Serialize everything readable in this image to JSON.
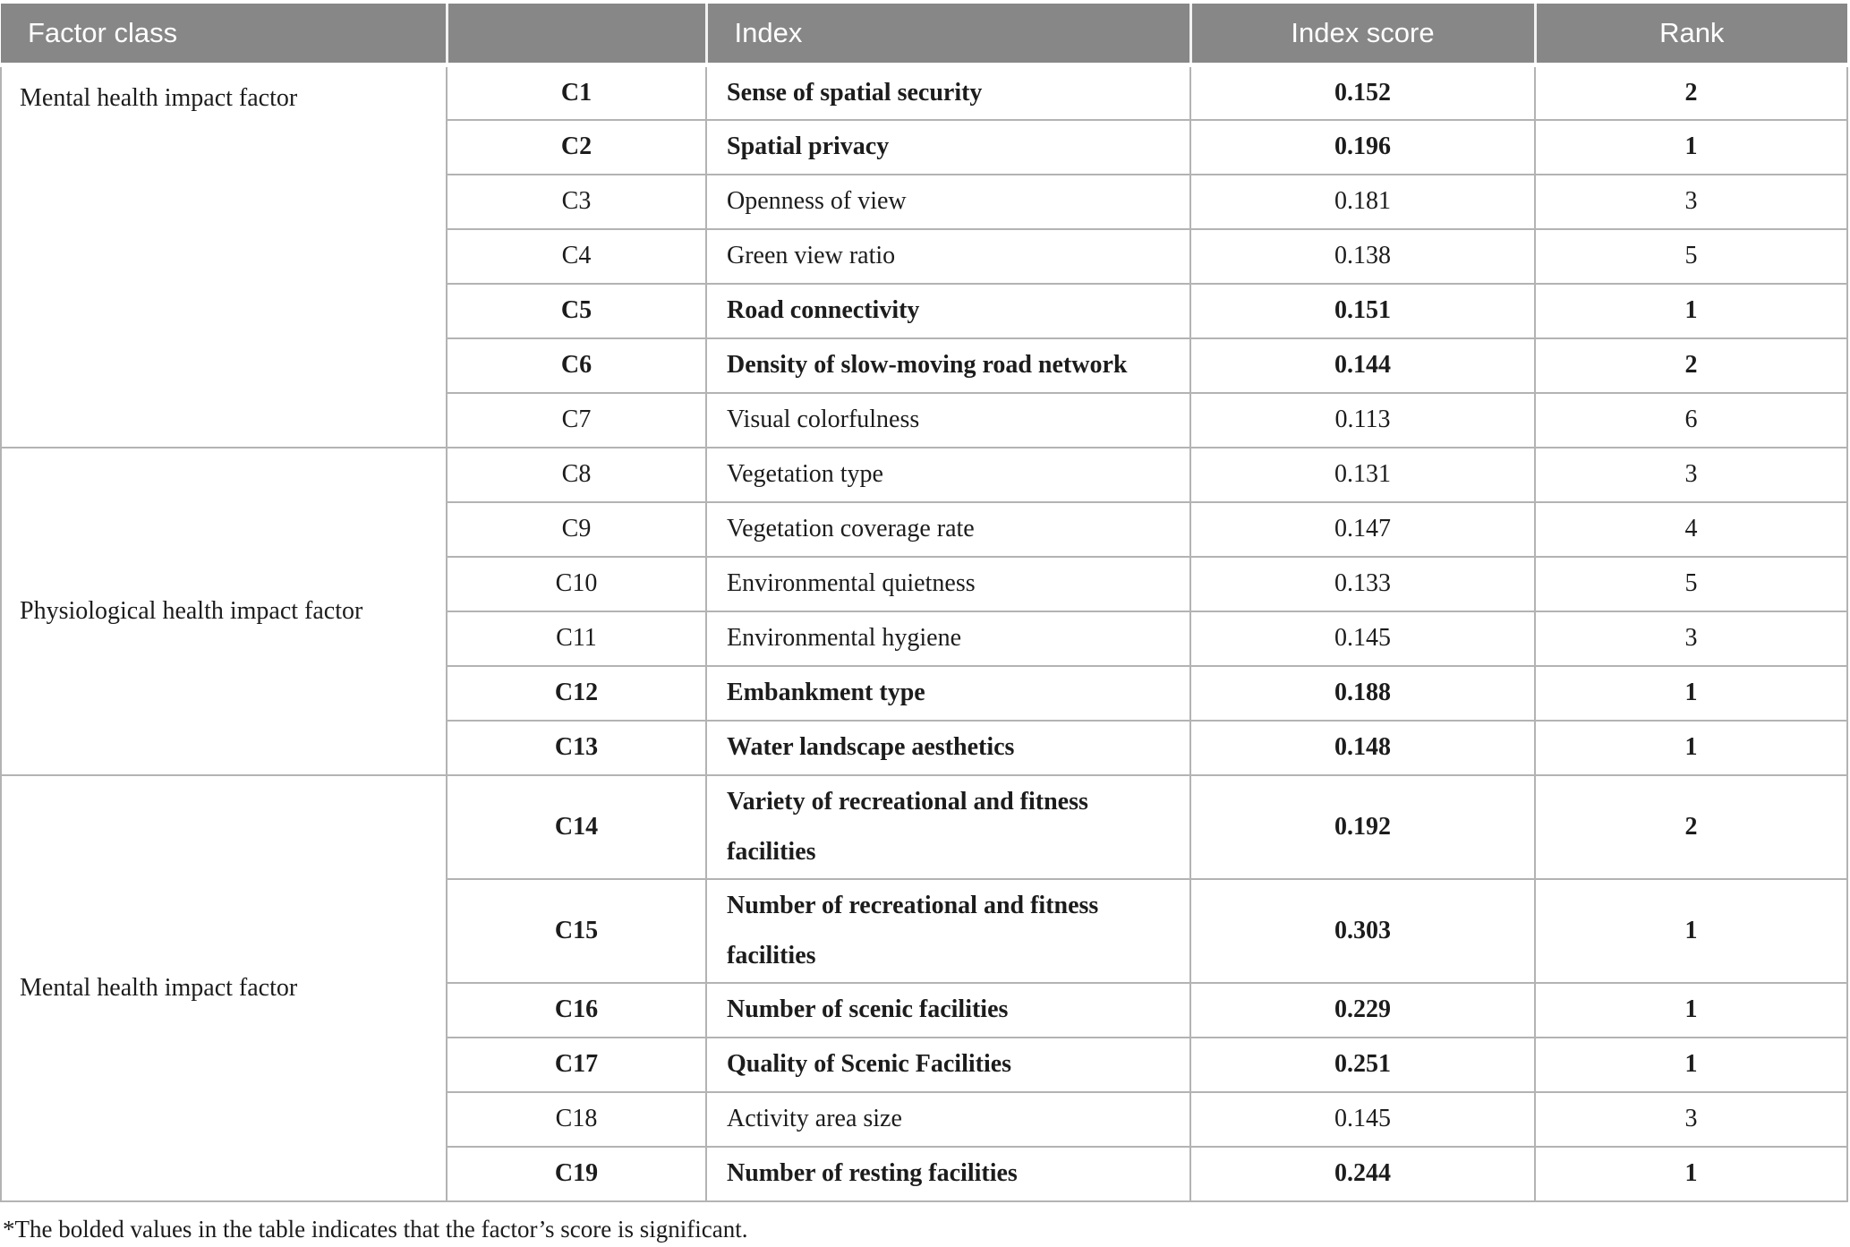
{
  "table": {
    "columns": [
      "Factor class",
      "",
      "Index",
      "Index score",
      "Rank"
    ],
    "groups": [
      {
        "label": "Mental health impact factor",
        "label_valign": "top",
        "rows": [
          {
            "code": "C1",
            "index": "Sense of spatial security",
            "score": "0.152",
            "rank": "2",
            "bold": true
          },
          {
            "code": "C2",
            "index": "Spatial privacy",
            "score": "0.196",
            "rank": "1",
            "bold": true
          },
          {
            "code": "C3",
            "index": "Openness of view",
            "score": "0.181",
            "rank": "3",
            "bold": false
          },
          {
            "code": "C4",
            "index": "Green view ratio",
            "score": "0.138",
            "rank": "5",
            "bold": false
          },
          {
            "code": "C5",
            "index": "Road connectivity",
            "score": "0.151",
            "rank": "1",
            "bold": true
          },
          {
            "code": "C6",
            "index": "Density of slow-moving road network",
            "score": "0.144",
            "rank": "2",
            "bold": true
          },
          {
            "code": "C7",
            "index": "Visual colorfulness",
            "score": "0.113",
            "rank": "6",
            "bold": false
          }
        ]
      },
      {
        "label": "Physiological health impact factor",
        "label_valign": "middle",
        "rows": [
          {
            "code": "C8",
            "index": "Vegetation type",
            "score": "0.131",
            "rank": "3",
            "bold": false
          },
          {
            "code": "C9",
            "index": "Vegetation coverage rate",
            "score": "0.147",
            "rank": "4",
            "bold": false
          },
          {
            "code": "C10",
            "index": "Environmental quietness",
            "score": "0.133",
            "rank": "5",
            "bold": false
          },
          {
            "code": "C11",
            "index": "Environmental hygiene",
            "score": "0.145",
            "rank": "3",
            "bold": false
          },
          {
            "code": "C12",
            "index": "Embankment type",
            "score": "0.188",
            "rank": "1",
            "bold": true
          },
          {
            "code": "C13",
            "index": "Water landscape aesthetics",
            "score": "0.148",
            "rank": "1",
            "bold": true
          }
        ]
      },
      {
        "label": "Mental health impact factor",
        "label_valign": "middle",
        "rows": [
          {
            "code": "C14",
            "index": "Variety of recreational and fitness facilities",
            "score": "0.192",
            "rank": "2",
            "bold": true,
            "tall": true
          },
          {
            "code": "C15",
            "index": "Number of recreational and fitness facilities",
            "score": "0.303",
            "rank": "1",
            "bold": true,
            "tall": true
          },
          {
            "code": "C16",
            "index": "Number of scenic facilities",
            "score": "0.229",
            "rank": "1",
            "bold": true
          },
          {
            "code": "C17",
            "index": "Quality of Scenic Facilities",
            "score": "0.251",
            "rank": "1",
            "bold": true
          },
          {
            "code": "C18",
            "index": "Activity area size",
            "score": "0.145",
            "rank": "3",
            "bold": false
          },
          {
            "code": "C19",
            "index": "Number of resting facilities",
            "score": "0.244",
            "rank": "1",
            "bold": true
          }
        ]
      }
    ]
  },
  "footnote": {
    "text": "*The bolded values in the table indicates that the factor’s score is significant."
  },
  "colors": {
    "header_bg": "#878787",
    "header_text": "#ffffff",
    "header_sep": "#f2f2f2",
    "body_text": "#1c1c1c",
    "grid_line": "#b3b3b3",
    "page_bg": "#ffffff"
  }
}
